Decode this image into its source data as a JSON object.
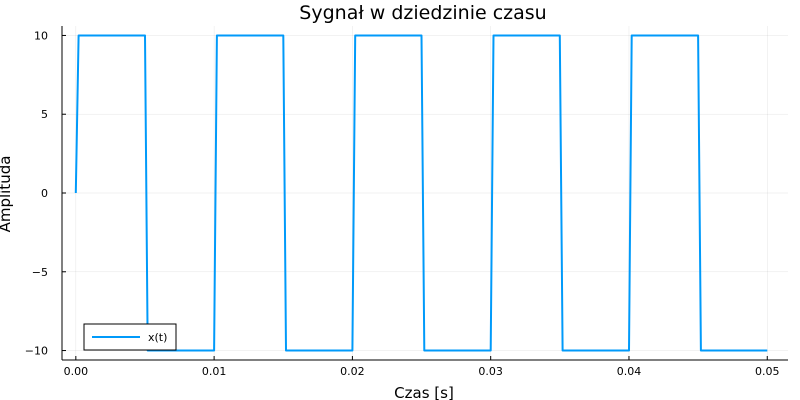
{
  "chart_data": {
    "type": "line",
    "title": "Sygnał w dziedzinie czasu",
    "xlabel": "Czas [s]",
    "ylabel": "Amplituda",
    "xlim": [
      -0.001,
      0.0515
    ],
    "ylim": [
      -10.6,
      10.6
    ],
    "xticks": [
      0.0,
      0.01,
      0.02,
      0.03,
      0.04,
      0.05
    ],
    "xtick_labels": [
      "0.00",
      "0.01",
      "0.02",
      "0.03",
      "0.04",
      "0.05"
    ],
    "yticks": [
      10,
      5,
      0,
      -5,
      -10
    ],
    "ytick_labels": [
      "10",
      "5",
      "0",
      "−5",
      "−10"
    ],
    "grid": true,
    "legend_position": "bottom-left",
    "series": [
      {
        "name": "x(t)",
        "color": "#009AFA",
        "points": [
          [
            0.0,
            0
          ],
          [
            0.0002,
            10
          ],
          [
            0.005,
            10
          ],
          [
            0.0052,
            -10
          ],
          [
            0.01,
            -10
          ],
          [
            0.0102,
            10
          ],
          [
            0.015,
            10
          ],
          [
            0.0152,
            -10
          ],
          [
            0.02,
            -10
          ],
          [
            0.0202,
            10
          ],
          [
            0.025,
            10
          ],
          [
            0.0252,
            -10
          ],
          [
            0.03,
            -10
          ],
          [
            0.0302,
            10
          ],
          [
            0.035,
            10
          ],
          [
            0.0352,
            -10
          ],
          [
            0.04,
            -10
          ],
          [
            0.0402,
            10
          ],
          [
            0.045,
            10
          ],
          [
            0.0452,
            -10
          ],
          [
            0.05,
            -10
          ]
        ]
      }
    ]
  }
}
